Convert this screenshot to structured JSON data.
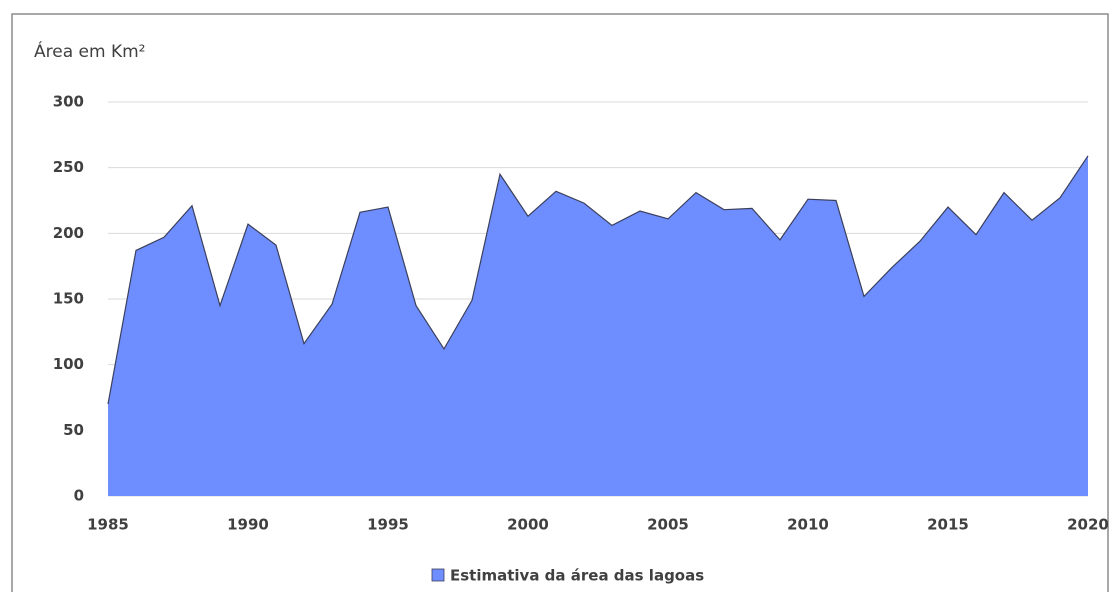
{
  "chart_data": {
    "type": "area",
    "y_axis_title": "Área em Km²",
    "x": [
      1985,
      1986,
      1987,
      1988,
      1989,
      1990,
      1991,
      1992,
      1993,
      1994,
      1995,
      1996,
      1997,
      1998,
      1999,
      2000,
      2001,
      2002,
      2003,
      2004,
      2005,
      2006,
      2007,
      2008,
      2009,
      2010,
      2011,
      2012,
      2013,
      2014,
      2015,
      2016,
      2017,
      2018,
      2019,
      2020
    ],
    "series": [
      {
        "name": "Estimativa da área das lagoas",
        "color": "#6e8eff",
        "values": [
          70,
          187,
          197,
          221,
          145,
          207,
          191,
          116,
          146,
          216,
          220,
          145,
          112,
          149,
          245,
          213,
          232,
          223,
          206,
          217,
          211,
          231,
          218,
          219,
          195,
          226,
          225,
          152,
          174,
          194,
          220,
          199,
          231,
          210,
          227,
          259
        ]
      }
    ],
    "xlim": [
      1985,
      2020
    ],
    "xticks": [
      1985,
      1990,
      1995,
      2000,
      2005,
      2010,
      2015,
      2020
    ],
    "ylim": [
      0,
      300
    ],
    "yticks": [
      0,
      50,
      100,
      150,
      200,
      250,
      300
    ],
    "grid": true,
    "legend": "bottom"
  }
}
